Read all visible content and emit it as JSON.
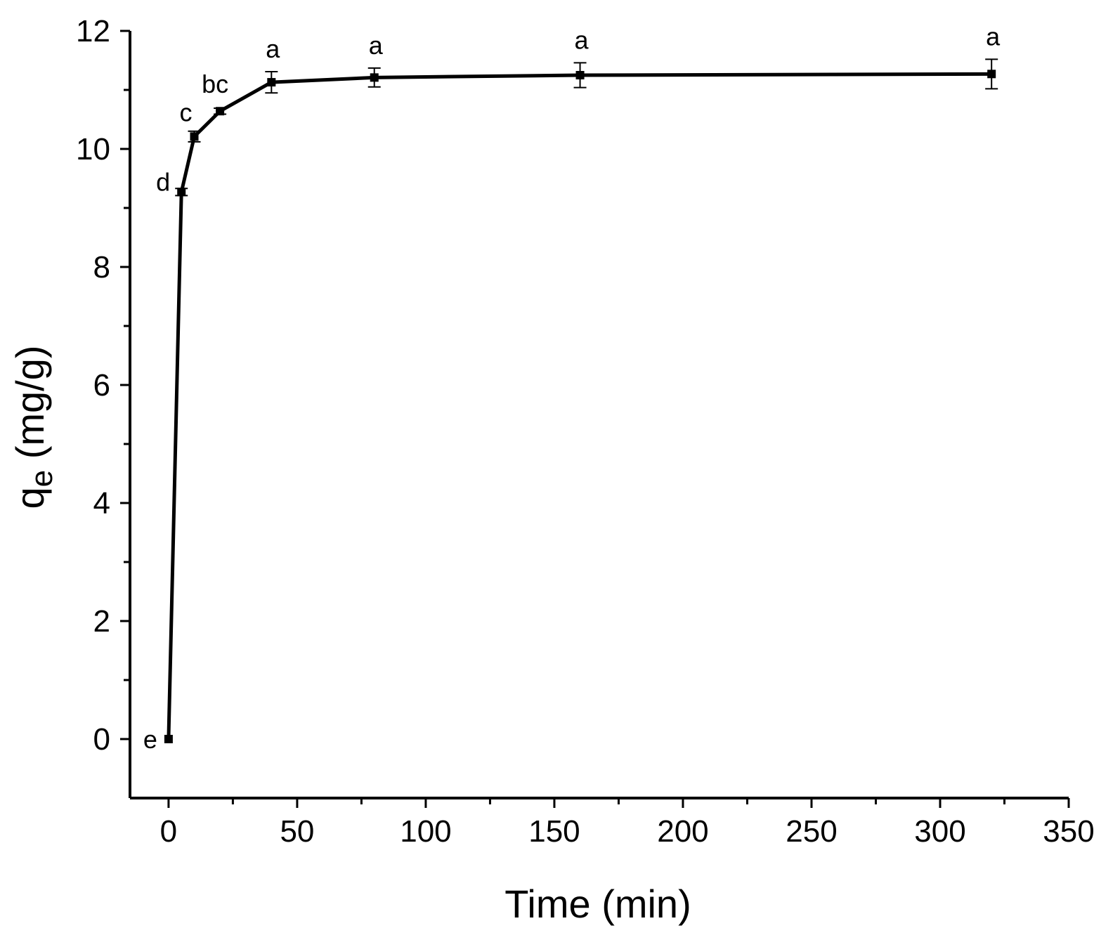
{
  "chart_data": {
    "type": "line",
    "title": "",
    "xlabel": "Time (min)",
    "ylabel_main": "q",
    "ylabel_sub": "e",
    "ylabel_unit": " (mg/g)",
    "xlim": [
      -15,
      350
    ],
    "ylim": [
      -1,
      12
    ],
    "x_ticks": [
      0,
      50,
      100,
      150,
      200,
      250,
      300,
      350
    ],
    "y_ticks": [
      0,
      2,
      4,
      6,
      8,
      10,
      12
    ],
    "x_tick_labels": [
      "0",
      "50",
      "100",
      "150",
      "200",
      "250",
      "300",
      "350"
    ],
    "y_tick_labels": [
      "0",
      "2",
      "4",
      "6",
      "8",
      "10",
      "12"
    ],
    "grid": false,
    "legend": "none",
    "series": [
      {
        "points": [
          {
            "x": 0,
            "y": 0.0,
            "err": 0.0,
            "label": "e"
          },
          {
            "x": 5,
            "y": 9.27,
            "err": 0.06,
            "label": "d"
          },
          {
            "x": 10,
            "y": 10.21,
            "err": 0.09,
            "label": "c"
          },
          {
            "x": 20,
            "y": 10.64,
            "err": 0.05,
            "label": "bc"
          },
          {
            "x": 40,
            "y": 11.13,
            "err": 0.18,
            "label": "a"
          },
          {
            "x": 80,
            "y": 11.21,
            "err": 0.16,
            "label": "a"
          },
          {
            "x": 160,
            "y": 11.25,
            "err": 0.21,
            "label": "a"
          },
          {
            "x": 320,
            "y": 11.27,
            "err": 0.25,
            "label": "a"
          }
        ]
      }
    ]
  }
}
